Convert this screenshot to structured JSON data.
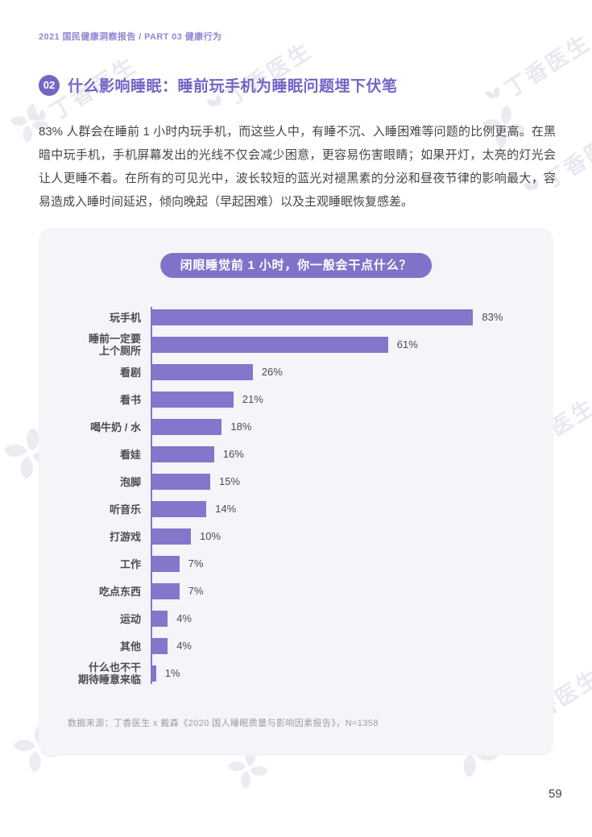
{
  "page": {
    "breadcrumb": "2021 国民健康洞察报告 / PART 03 健康行为",
    "page_number": "59"
  },
  "section": {
    "badge": "02",
    "title": "什么影响睡眠：睡前玩手机为睡眠问题埋下伏笔",
    "body": "83% 人群会在睡前 1 小时内玩手机，而这些人中，有睡不沉、入睡困难等问题的比例更高。在黑暗中玩手机，手机屏幕发出的光线不仅会减少困意，更容易伤害眼睛；如果开灯，太亮的灯光会让人更睡不着。在所有的可见光中，波长较短的蓝光对褪黑素的分泌和昼夜节律的影响最大，容易造成入睡时间延迟，倾向晚起（早起困难）以及主观睡眠恢复感差。"
  },
  "chart": {
    "title": "闭眼睡觉前 1 小时，你一般会干点什么？",
    "source": "数据来源：丁香医生 x 戴森《2020 国人睡眠质量与影响因素报告》，N=1358"
  },
  "chart_data": {
    "type": "bar",
    "orientation": "horizontal",
    "title": "闭眼睡觉前 1 小时，你一般会干点什么？",
    "categories": [
      "玩手机",
      "睡前一定要\n上个厕所",
      "看剧",
      "看书",
      "喝牛奶 / 水",
      "看娃",
      "泡脚",
      "听音乐",
      "打游戏",
      "工作",
      "吃点东西",
      "运动",
      "其他",
      "什么也不干\n期待睡意来临"
    ],
    "values": [
      83,
      61,
      26,
      21,
      18,
      16,
      15,
      14,
      10,
      7,
      7,
      4,
      4,
      1
    ],
    "unit": "%",
    "xlim": [
      0,
      100
    ],
    "bar_color": "#8376CB",
    "legend": "none",
    "grid": "off"
  },
  "watermark": {
    "text": "丁香医生"
  },
  "colors": {
    "accent_purple": "#7265C5",
    "badge_purple": "#7566C3",
    "pill_purple": "#8172C9",
    "bar_purple": "#8376CB",
    "breadcrumb_purple": "#9186D3",
    "card_background": "#F5F4F8",
    "body_text": "#45454D",
    "source_text": "#9C9CA4"
  }
}
